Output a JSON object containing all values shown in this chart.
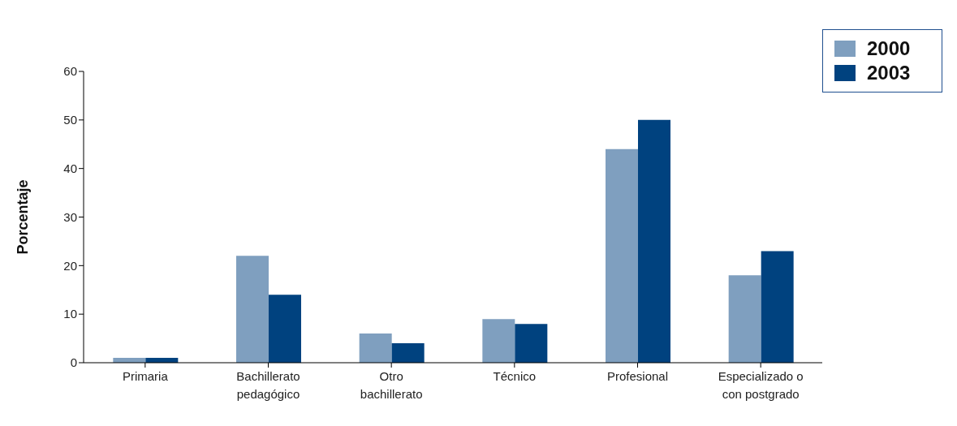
{
  "chart_data": {
    "type": "bar",
    "ylabel": "Porcentaje",
    "categories": [
      "Primaria",
      "Bachillerato\npedagógico",
      "Otro\nbachillerato",
      "Técnico",
      "Profesional",
      "Especializado o\ncon postgrado"
    ],
    "series": [
      {
        "name": "2000",
        "color": "#7f9fbf",
        "values": [
          1,
          22,
          6,
          9,
          44,
          18
        ]
      },
      {
        "name": "2003",
        "color": "#00427f",
        "values": [
          1,
          14,
          4,
          8,
          50,
          23
        ]
      }
    ],
    "ylim": [
      0,
      60
    ],
    "yticks": [
      0,
      10,
      20,
      30,
      40,
      50,
      60
    ],
    "grid": false,
    "legend": "top right"
  }
}
